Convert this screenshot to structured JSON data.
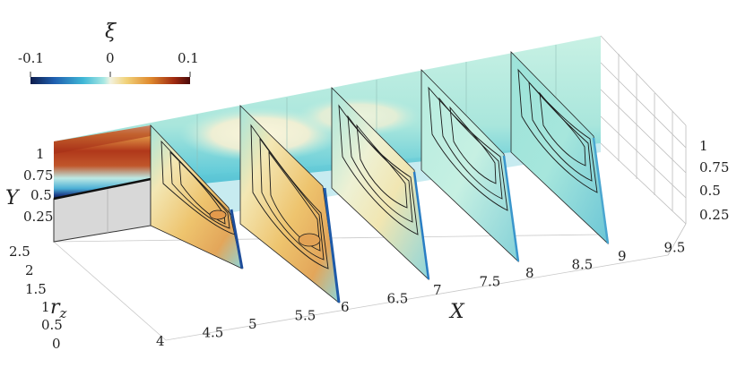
{
  "colorbar": {
    "title": "ξ",
    "min_label": "-0.1",
    "mid_label": "0",
    "max_label": "0.1",
    "range": [
      -0.1,
      0.1
    ],
    "colors": [
      "#0d1b4a",
      "#1f5fb0",
      "#3fb7d6",
      "#a8e8e3",
      "#f2f2e0",
      "#f1d27a",
      "#e08a2e",
      "#a02a10",
      "#4a0a0a"
    ]
  },
  "axes": {
    "x_label": "X",
    "y_label": "Y",
    "z_label": "r",
    "z_label_sub": "z",
    "x_ticks": [
      "4",
      "4.5",
      "5",
      "5.5",
      "6",
      "6.5",
      "7",
      "7.5",
      "8",
      "8.5",
      "9",
      "9.5"
    ],
    "y_ticks_left": [
      "1",
      "0.75",
      "0.5",
      "0.25"
    ],
    "y_ticks_right": [
      "1",
      "0.75",
      "0.5",
      "0.25"
    ],
    "z_ticks": [
      "2.5",
      "2",
      "1.5",
      "1",
      "0.5",
      "0"
    ]
  },
  "slices_x": [
    5,
    6,
    7,
    8,
    9
  ],
  "colors": {
    "background_field": "#b5ecdd",
    "solid_block": "#d8d8d8",
    "contour": "#1a1a1a",
    "grid": "#9a9a9a"
  }
}
